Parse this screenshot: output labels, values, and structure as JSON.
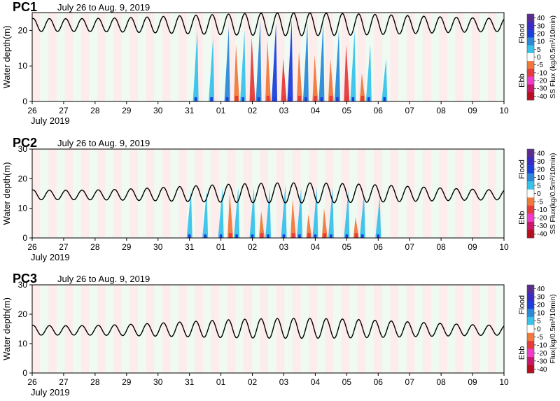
{
  "figure": {
    "period": "July 26 to Aug. 9, 2019",
    "ylabel": "Water depth(m)",
    "xlabel": "July 2019"
  },
  "colorbar": {
    "ticks": [
      40,
      30,
      20,
      10,
      5,
      0,
      -5,
      -10,
      -20,
      -30,
      -40
    ],
    "flood_label": "Flood",
    "ebb_label": "Ebb",
    "colors": {
      "40": "#5a2d91",
      "30": "#3a2bc4",
      "20": "#1c3fdc",
      "10": "#2a8ad8",
      "5": "#38c3ea",
      "0": "#ffffff",
      "-5": "#f07a3c",
      "-10": "#e43c3c",
      "-20": "#f03cc8",
      "-30": "#c8186a",
      "-40": "#b80f1e"
    },
    "background_flood": "#eefaf2",
    "background_ebb": "#fcecec"
  },
  "chart_data": [
    {
      "type": "heatmap",
      "panel": "PC1",
      "title": "PC1",
      "subtitle": "July 26 to Aug. 9, 2019",
      "ylabel": "Water depth(m)",
      "xlabel": "July 2019",
      "colorbar_label": "SS Flux (kg/0.5m²/10min)",
      "x_ticks": [
        "26",
        "27",
        "28",
        "29",
        "30",
        "31",
        "01",
        "02",
        "03",
        "04",
        "05",
        "06",
        "07",
        "08",
        "09",
        "10"
      ],
      "x_range_days": [
        26,
        41
      ],
      "y_ticks": [
        0,
        10,
        20
      ],
      "ylim": [
        0,
        25
      ],
      "tide_mean_spring": [
        21.5,
        21.7
      ],
      "tide_amplitude_neap_spring": [
        1.8,
        3.2
      ],
      "tide_period_hours": 12.42,
      "flux_events": [
        {
          "day": 31.2,
          "type": "flood",
          "top": 20,
          "level": 5
        },
        {
          "day": 31.7,
          "type": "flood",
          "top": 18,
          "level": 5
        },
        {
          "day": 32.2,
          "type": "flood",
          "top": 21,
          "level": 10
        },
        {
          "day": 32.7,
          "type": "flood",
          "top": 20,
          "level": 5
        },
        {
          "day": 33.2,
          "type": "flood",
          "top": 23,
          "level": 10
        },
        {
          "day": 33.7,
          "type": "flood",
          "top": 22,
          "level": 20
        },
        {
          "day": 34.2,
          "type": "flood",
          "top": 23,
          "level": 20
        },
        {
          "day": 34.7,
          "type": "flood",
          "top": 22,
          "level": 10
        },
        {
          "day": 35.2,
          "type": "flood",
          "top": 22,
          "level": 10
        },
        {
          "day": 35.7,
          "type": "flood",
          "top": 20,
          "level": 10
        },
        {
          "day": 36.2,
          "type": "flood",
          "top": 20,
          "level": 5
        },
        {
          "day": 36.7,
          "type": "flood",
          "top": 16,
          "level": 5
        },
        {
          "day": 37.2,
          "type": "flood",
          "top": 12,
          "level": 5
        },
        {
          "day": 32.5,
          "type": "ebb",
          "top": 16,
          "level": -5
        },
        {
          "day": 33.0,
          "type": "ebb",
          "top": 18,
          "level": -10
        },
        {
          "day": 33.5,
          "type": "ebb",
          "top": 17,
          "level": -5
        },
        {
          "day": 34.0,
          "type": "ebb",
          "top": 12,
          "level": -10
        },
        {
          "day": 34.5,
          "type": "ebb",
          "top": 14,
          "level": -5
        },
        {
          "day": 35.0,
          "type": "ebb",
          "top": 13,
          "level": -5
        },
        {
          "day": 35.5,
          "type": "ebb",
          "top": 12,
          "level": -5
        },
        {
          "day": 36.0,
          "type": "ebb",
          "top": 16,
          "level": -10
        },
        {
          "day": 36.5,
          "type": "ebb",
          "top": 8,
          "level": -5
        }
      ]
    },
    {
      "type": "heatmap",
      "panel": "PC2",
      "title": "PC2",
      "subtitle": "July 26 to Aug. 9, 2019",
      "ylabel": "Water depth(m)",
      "xlabel": "July 2019",
      "colorbar_label": "SS Flux(kg/0.5m²/10min)",
      "x_ticks": [
        "26",
        "27",
        "28",
        "29",
        "30",
        "31",
        "01",
        "02",
        "03",
        "04",
        "05",
        "06",
        "07",
        "08",
        "09",
        "10"
      ],
      "x_range_days": [
        26,
        41
      ],
      "y_ticks": [
        0,
        10,
        20,
        30
      ],
      "ylim": [
        0,
        30
      ],
      "tide_mean_spring": [
        14.5,
        15.2
      ],
      "tide_amplitude_neap_spring": [
        1.6,
        3.4
      ],
      "tide_period_hours": 12.42,
      "flux_events": [
        {
          "day": 31.0,
          "type": "flood",
          "top": 16,
          "level": 5
        },
        {
          "day": 31.5,
          "type": "flood",
          "top": 16,
          "level": 5
        },
        {
          "day": 32.0,
          "type": "flood",
          "top": 17,
          "level": 5
        },
        {
          "day": 32.5,
          "type": "flood",
          "top": 17,
          "level": 5
        },
        {
          "day": 33.0,
          "type": "flood",
          "top": 17,
          "level": 5
        },
        {
          "day": 33.5,
          "type": "flood",
          "top": 17,
          "level": 5
        },
        {
          "day": 34.0,
          "type": "flood",
          "top": 18,
          "level": 5
        },
        {
          "day": 34.5,
          "type": "flood",
          "top": 17,
          "level": 5
        },
        {
          "day": 35.0,
          "type": "flood",
          "top": 17,
          "level": 5
        },
        {
          "day": 35.5,
          "type": "flood",
          "top": 17,
          "level": 5
        },
        {
          "day": 36.0,
          "type": "flood",
          "top": 16,
          "level": 5
        },
        {
          "day": 36.5,
          "type": "flood",
          "top": 15,
          "level": 5
        },
        {
          "day": 37.0,
          "type": "flood",
          "top": 14,
          "level": 5
        },
        {
          "day": 32.3,
          "type": "ebb",
          "top": 15,
          "level": -5
        },
        {
          "day": 33.3,
          "type": "ebb",
          "top": 9,
          "level": -5
        },
        {
          "day": 34.3,
          "type": "ebb",
          "top": 13,
          "level": -5
        },
        {
          "day": 34.8,
          "type": "ebb",
          "top": 8,
          "level": -5
        },
        {
          "day": 35.3,
          "type": "ebb",
          "top": 10,
          "level": -5
        },
        {
          "day": 36.3,
          "type": "ebb",
          "top": 7,
          "level": -5
        }
      ]
    },
    {
      "type": "heatmap",
      "panel": "PC3",
      "title": "PC3",
      "subtitle": "July 26 to Aug. 9, 2019",
      "ylabel": "Water depth(m)",
      "xlabel": "July 2019",
      "colorbar_label": "Flux(kg/0.5m²/10min)",
      "x_ticks": [
        "26",
        "27",
        "28",
        "29",
        "30",
        "31",
        "01",
        "02",
        "03",
        "04",
        "05",
        "06",
        "07",
        "08",
        "09",
        "10"
      ],
      "x_range_days": [
        26,
        41
      ],
      "y_ticks": [
        0,
        10,
        20,
        30
      ],
      "ylim": [
        0,
        30
      ],
      "tide_mean_spring": [
        14.5,
        15.2
      ],
      "tide_amplitude_neap_spring": [
        1.6,
        3.4
      ],
      "tide_period_hours": 12.42,
      "flux_events": []
    }
  ]
}
